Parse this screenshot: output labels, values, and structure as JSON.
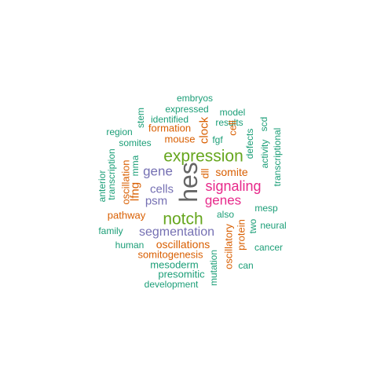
{
  "palette": {
    "teal": "#1b9e77",
    "orange": "#d95f02",
    "purple": "#7570b3",
    "magenta": "#e7298a",
    "green": "#66a61e",
    "gray": "#666666"
  },
  "words": [
    {
      "text": "embryos",
      "color": "teal"
    },
    {
      "text": "expressed",
      "color": "teal"
    },
    {
      "text": "model",
      "color": "teal"
    },
    {
      "text": "identified",
      "color": "teal"
    },
    {
      "text": "results",
      "color": "teal"
    },
    {
      "text": "stem",
      "color": "teal"
    },
    {
      "text": "region",
      "color": "teal"
    },
    {
      "text": "formation",
      "color": "orange"
    },
    {
      "text": "cell",
      "color": "orange"
    },
    {
      "text": "scd",
      "color": "teal"
    },
    {
      "text": "mouse",
      "color": "orange"
    },
    {
      "text": "clock",
      "color": "orange"
    },
    {
      "text": "somites",
      "color": "teal"
    },
    {
      "text": "fgf",
      "color": "teal"
    },
    {
      "text": "defects",
      "color": "teal"
    },
    {
      "text": "activity",
      "color": "teal"
    },
    {
      "text": "expression",
      "color": "green"
    },
    {
      "text": "transcriptional",
      "color": "teal"
    },
    {
      "text": "transcription",
      "color": "teal"
    },
    {
      "text": "anterior",
      "color": "teal"
    },
    {
      "text": "oscillation",
      "color": "orange"
    },
    {
      "text": "mma",
      "color": "teal"
    },
    {
      "text": "gene",
      "color": "purple"
    },
    {
      "text": "hes",
      "color": "gray"
    },
    {
      "text": "dll",
      "color": "orange"
    },
    {
      "text": "somite",
      "color": "orange"
    },
    {
      "text": "lfng",
      "color": "orange"
    },
    {
      "text": "signaling",
      "color": "magenta"
    },
    {
      "text": "cells",
      "color": "purple"
    },
    {
      "text": "genes",
      "color": "magenta"
    },
    {
      "text": "psm",
      "color": "purple"
    },
    {
      "text": "mesp",
      "color": "teal"
    },
    {
      "text": "pathway",
      "color": "orange"
    },
    {
      "text": "notch",
      "color": "green"
    },
    {
      "text": "also",
      "color": "teal"
    },
    {
      "text": "two",
      "color": "teal"
    },
    {
      "text": "neural",
      "color": "teal"
    },
    {
      "text": "family",
      "color": "teal"
    },
    {
      "text": "segmentation",
      "color": "purple"
    },
    {
      "text": "oscillatory",
      "color": "orange"
    },
    {
      "text": "protein",
      "color": "orange"
    },
    {
      "text": "human",
      "color": "teal"
    },
    {
      "text": "oscillations",
      "color": "orange"
    },
    {
      "text": "cancer",
      "color": "teal"
    },
    {
      "text": "somitogenesis",
      "color": "orange"
    },
    {
      "text": "mesoderm",
      "color": "teal"
    },
    {
      "text": "mutation",
      "color": "teal"
    },
    {
      "text": "can",
      "color": "teal"
    },
    {
      "text": "presomitic",
      "color": "teal"
    },
    {
      "text": "development",
      "color": "teal"
    }
  ]
}
